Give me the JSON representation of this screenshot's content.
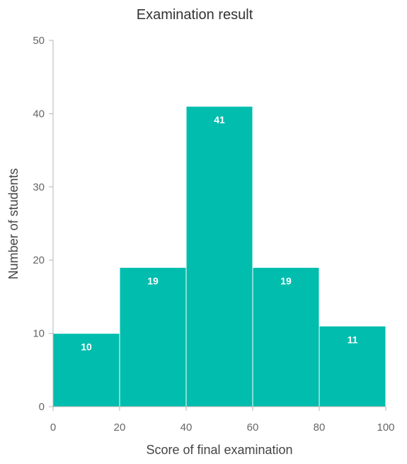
{
  "chart_data": {
    "type": "bar",
    "title": "Examination result",
    "xlabel": "Score of final examination",
    "ylabel": "Number of students",
    "bins": [
      {
        "start": 0,
        "end": 20,
        "value": 10
      },
      {
        "start": 20,
        "end": 40,
        "value": 19
      },
      {
        "start": 40,
        "end": 60,
        "value": 41
      },
      {
        "start": 60,
        "end": 80,
        "value": 19
      },
      {
        "start": 80,
        "end": 100,
        "value": 11
      }
    ],
    "xlim": [
      0,
      100
    ],
    "ylim": [
      0,
      50
    ],
    "xticks": [
      0,
      20,
      40,
      60,
      80,
      100
    ],
    "yticks": [
      0,
      10,
      20,
      30,
      40,
      50
    ],
    "grid": false,
    "bar_color": "#00BDAE",
    "data_labels": true
  }
}
